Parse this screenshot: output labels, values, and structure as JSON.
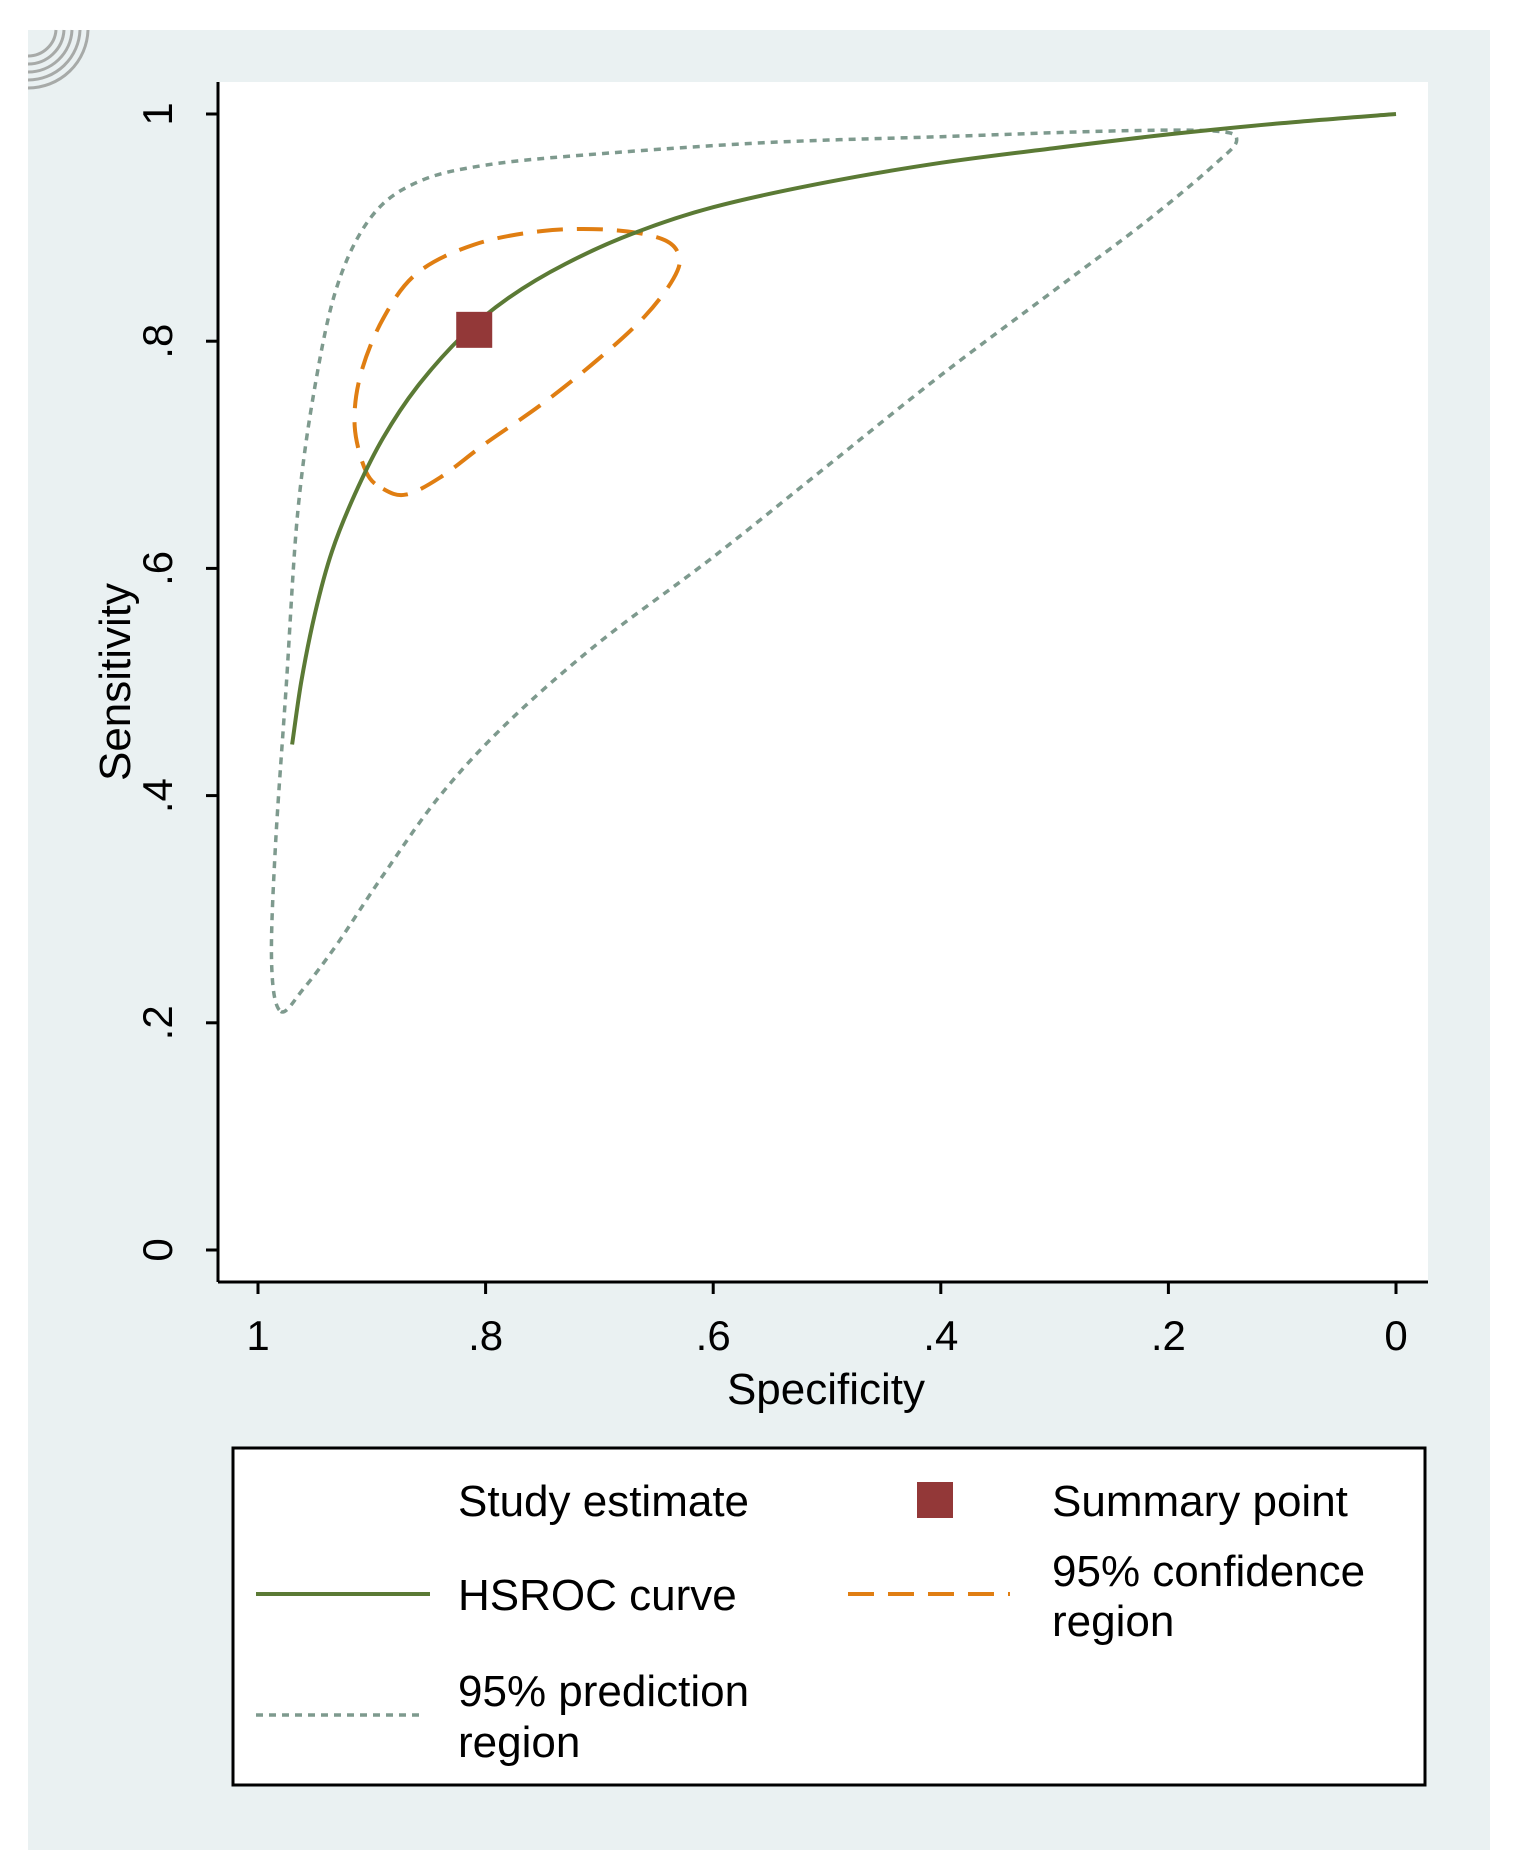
{
  "chart_data": {
    "type": "line",
    "title": "",
    "xlabel": "Specificity",
    "ylabel": "Sensitivity",
    "x_axis_reversed": true,
    "xlim": [
      1,
      0
    ],
    "ylim": [
      0,
      1
    ],
    "x_ticks": [
      {
        "value": 1,
        "label": "1"
      },
      {
        "value": 0.8,
        "label": ".8"
      },
      {
        "value": 0.6,
        "label": ".6"
      },
      {
        "value": 0.4,
        "label": ".4"
      },
      {
        "value": 0.2,
        "label": ".2"
      },
      {
        "value": 0,
        "label": "0"
      }
    ],
    "y_ticks": [
      {
        "value": 0,
        "label": "0"
      },
      {
        "value": 0.2,
        "label": ".2"
      },
      {
        "value": 0.4,
        "label": ".4"
      },
      {
        "value": 0.6,
        "label": ".6"
      },
      {
        "value": 0.8,
        "label": ".8"
      },
      {
        "value": 1,
        "label": "1"
      }
    ],
    "grid": false,
    "legend_position": "bottom",
    "colors": {
      "background": "#eaf1f2",
      "plot_background": "#ffffff",
      "hsroc": "#5b7a35",
      "confidence": "#e07e12",
      "prediction": "#7e9a8e",
      "summary": "#933838"
    },
    "series": [
      {
        "name": "HSROC curve",
        "style": "solid",
        "points": [
          {
            "x": 0.97,
            "y": 0.445
          },
          {
            "x": 0.962,
            "y": 0.5
          },
          {
            "x": 0.95,
            "y": 0.56
          },
          {
            "x": 0.935,
            "y": 0.615
          },
          {
            "x": 0.915,
            "y": 0.665
          },
          {
            "x": 0.89,
            "y": 0.715
          },
          {
            "x": 0.86,
            "y": 0.76
          },
          {
            "x": 0.82,
            "y": 0.805
          },
          {
            "x": 0.78,
            "y": 0.838
          },
          {
            "x": 0.73,
            "y": 0.868
          },
          {
            "x": 0.67,
            "y": 0.895
          },
          {
            "x": 0.6,
            "y": 0.918
          },
          {
            "x": 0.5,
            "y": 0.94
          },
          {
            "x": 0.4,
            "y": 0.957
          },
          {
            "x": 0.3,
            "y": 0.97
          },
          {
            "x": 0.2,
            "y": 0.982
          },
          {
            "x": 0.1,
            "y": 0.992
          },
          {
            "x": 0.0,
            "y": 1.0
          }
        ]
      },
      {
        "name": "95% confidence region",
        "style": "dashed",
        "closed": true,
        "points": [
          {
            "x": 0.89,
            "y": 0.67
          },
          {
            "x": 0.87,
            "y": 0.665
          },
          {
            "x": 0.84,
            "y": 0.68
          },
          {
            "x": 0.8,
            "y": 0.71
          },
          {
            "x": 0.75,
            "y": 0.745
          },
          {
            "x": 0.7,
            "y": 0.785
          },
          {
            "x": 0.66,
            "y": 0.822
          },
          {
            "x": 0.635,
            "y": 0.855
          },
          {
            "x": 0.63,
            "y": 0.875
          },
          {
            "x": 0.645,
            "y": 0.89
          },
          {
            "x": 0.69,
            "y": 0.898
          },
          {
            "x": 0.75,
            "y": 0.897
          },
          {
            "x": 0.81,
            "y": 0.885
          },
          {
            "x": 0.86,
            "y": 0.86
          },
          {
            "x": 0.89,
            "y": 0.82
          },
          {
            "x": 0.91,
            "y": 0.77
          },
          {
            "x": 0.915,
            "y": 0.725
          },
          {
            "x": 0.905,
            "y": 0.685
          }
        ]
      },
      {
        "name": "95% prediction region",
        "style": "dotted",
        "closed": true,
        "points": [
          {
            "x": 0.98,
            "y": 0.21
          },
          {
            "x": 0.96,
            "y": 0.23
          },
          {
            "x": 0.93,
            "y": 0.27
          },
          {
            "x": 0.89,
            "y": 0.33
          },
          {
            "x": 0.84,
            "y": 0.4
          },
          {
            "x": 0.78,
            "y": 0.465
          },
          {
            "x": 0.7,
            "y": 0.535
          },
          {
            "x": 0.6,
            "y": 0.61
          },
          {
            "x": 0.5,
            "y": 0.69
          },
          {
            "x": 0.4,
            "y": 0.77
          },
          {
            "x": 0.3,
            "y": 0.845
          },
          {
            "x": 0.22,
            "y": 0.905
          },
          {
            "x": 0.16,
            "y": 0.955
          },
          {
            "x": 0.14,
            "y": 0.977
          },
          {
            "x": 0.16,
            "y": 0.985
          },
          {
            "x": 0.25,
            "y": 0.985
          },
          {
            "x": 0.4,
            "y": 0.98
          },
          {
            "x": 0.55,
            "y": 0.975
          },
          {
            "x": 0.7,
            "y": 0.965
          },
          {
            "x": 0.8,
            "y": 0.955
          },
          {
            "x": 0.86,
            "y": 0.94
          },
          {
            "x": 0.9,
            "y": 0.91
          },
          {
            "x": 0.93,
            "y": 0.85
          },
          {
            "x": 0.95,
            "y": 0.76
          },
          {
            "x": 0.965,
            "y": 0.65
          },
          {
            "x": 0.975,
            "y": 0.5
          },
          {
            "x": 0.985,
            "y": 0.35
          },
          {
            "x": 0.988,
            "y": 0.25
          }
        ]
      }
    ],
    "summary_point": {
      "name": "Summary point",
      "x": 0.81,
      "y": 0.81
    },
    "legend": {
      "study_estimate": "Study estimate",
      "summary_point": "Summary point",
      "hsroc": "HSROC curve",
      "confidence_line1": "95% confidence",
      "confidence_line2": "region",
      "prediction_line1": "95% prediction",
      "prediction_line2": "region"
    }
  }
}
